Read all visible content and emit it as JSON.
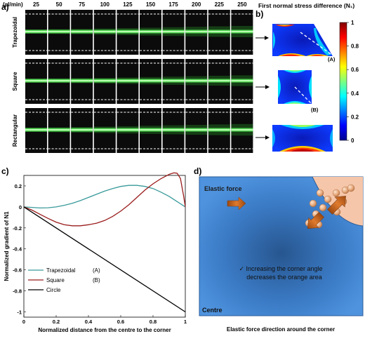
{
  "panel_a": {
    "label": "a)",
    "flow_unit": "(µl/min)",
    "flow_rates": [
      "25",
      "50",
      "75",
      "100",
      "125",
      "150",
      "175",
      "200",
      "225",
      "250"
    ],
    "rows": [
      {
        "label": "Trapezoidal",
        "spread": [
          0.05,
          0.07,
          0.09,
          0.12,
          0.15,
          0.18,
          0.21,
          0.24,
          0.27,
          0.3
        ]
      },
      {
        "label": "Square",
        "spread": [
          0.05,
          0.06,
          0.08,
          0.1,
          0.13,
          0.16,
          0.19,
          0.22,
          0.25,
          0.28
        ]
      },
      {
        "label": "Rectangular",
        "spread": [
          0.05,
          0.07,
          0.1,
          0.13,
          0.16,
          0.19,
          0.22,
          0.25,
          0.28,
          0.31
        ]
      }
    ]
  },
  "panel_b": {
    "label": "b)",
    "title": "First normal stress difference (N₁)",
    "marker_a": "(A)",
    "marker_b": "(B)",
    "colorbar_ticks": [
      "1",
      "0.8",
      "0.6",
      "0.4",
      "0.2",
      "0"
    ]
  },
  "panel_c": {
    "label": "c)",
    "xlabel": "Normalized distance from the centre to the corner",
    "ylabel": "Normalized gradient of N1",
    "x_ticks": [
      "0",
      "0.2",
      "0.4",
      "0.6",
      "0.8",
      "1"
    ],
    "y_ticks": [
      "0.2",
      "0",
      "-0.2",
      "-0.4",
      "-0.6",
      "-0.8",
      "-1"
    ],
    "legend": [
      {
        "name": "Trapezoidal",
        "tag": "(A)",
        "color": "#3a9a9a"
      },
      {
        "name": "Square",
        "tag": "(B)",
        "color": "#9a1c1c"
      },
      {
        "name": "Circle",
        "tag": "",
        "color": "#000000"
      }
    ]
  },
  "chart_data": {
    "type": "line",
    "xlabel": "Normalized distance from the centre to the corner",
    "ylabel": "Normalized gradient of N1",
    "xlim": [
      0,
      1
    ],
    "ylim": [
      -1.05,
      0.3
    ],
    "legend_position": "lower-left",
    "series": [
      {
        "name": "Trapezoidal (A)",
        "color": "#3a9a9a",
        "x": [
          0,
          0.05,
          0.1,
          0.15,
          0.2,
          0.25,
          0.3,
          0.35,
          0.4,
          0.45,
          0.5,
          0.55,
          0.6,
          0.65,
          0.7,
          0.75,
          0.8,
          0.85,
          0.9,
          0.95,
          0.98,
          1.0
        ],
        "y": [
          0,
          -0.005,
          -0.01,
          -0.008,
          0,
          0.015,
          0.035,
          0.06,
          0.09,
          0.12,
          0.15,
          0.175,
          0.195,
          0.205,
          0.205,
          0.195,
          0.175,
          0.14,
          0.1,
          0.05,
          0.02,
          0
        ]
      },
      {
        "name": "Square (B)",
        "color": "#9a1c1c",
        "x": [
          0,
          0.05,
          0.1,
          0.15,
          0.2,
          0.25,
          0.3,
          0.35,
          0.4,
          0.45,
          0.5,
          0.55,
          0.6,
          0.65,
          0.7,
          0.75,
          0.8,
          0.85,
          0.9,
          0.93,
          0.95,
          0.97,
          0.99,
          1.0
        ],
        "y": [
          0,
          -0.03,
          -0.07,
          -0.11,
          -0.145,
          -0.17,
          -0.18,
          -0.18,
          -0.17,
          -0.155,
          -0.13,
          -0.09,
          -0.04,
          0.02,
          0.09,
          0.16,
          0.22,
          0.27,
          0.31,
          0.325,
          0.32,
          0.27,
          0.1,
          0
        ]
      },
      {
        "name": "Circle",
        "color": "#000000",
        "x": [
          0,
          1
        ],
        "y": [
          0,
          -1
        ]
      }
    ]
  },
  "panel_d": {
    "label": "d)",
    "elastic_force": "Elastic force",
    "note_line1": "✓ Increasing the corner angle",
    "note_line2": "decreases the orange area",
    "centre": "Centre",
    "caption": "Elastic force direction around the corner",
    "colors": {
      "blue": "#4a8ad6",
      "orange_region": "#f6c6aa",
      "arrow": "#c8641e",
      "particle": "#e7a97c"
    }
  }
}
